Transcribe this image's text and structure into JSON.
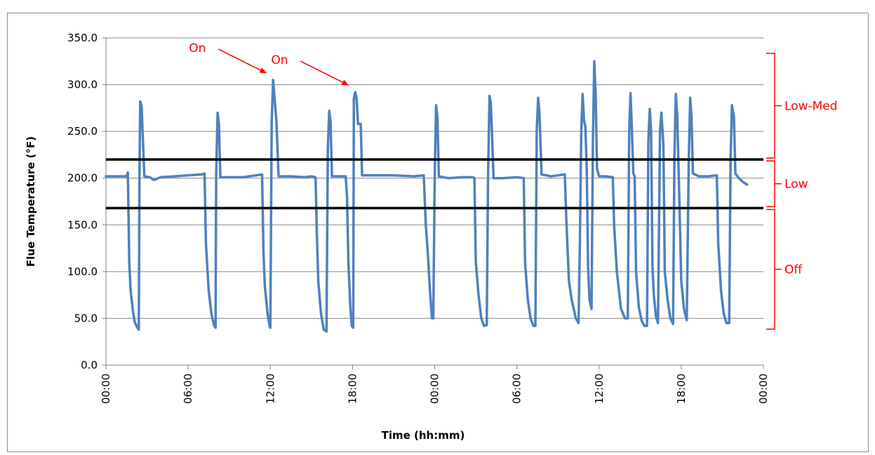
{
  "chart_data": {
    "type": "line",
    "title": "",
    "xlabel": "Time (hh:mm)",
    "ylabel": "Flue Temperature (°F)",
    "ylim": [
      0,
      350
    ],
    "y_ticks": [
      "0.0",
      "50.0",
      "100.0",
      "150.0",
      "200.0",
      "250.0",
      "300.0",
      "350.0"
    ],
    "x_unit": "hours",
    "xlim": [
      0,
      48
    ],
    "x_ticks": [
      {
        "x": 0,
        "label": "00:00"
      },
      {
        "x": 6,
        "label": "06:00"
      },
      {
        "x": 12,
        "label": "12:00"
      },
      {
        "x": 18,
        "label": "18:00"
      },
      {
        "x": 24,
        "label": "00:00"
      },
      {
        "x": 30,
        "label": "06:00"
      },
      {
        "x": 36,
        "label": "12:00"
      },
      {
        "x": 42,
        "label": "18:00"
      },
      {
        "x": 48,
        "label": "00:00"
      }
    ],
    "grid": true,
    "line_color": "#4f81bd",
    "threshold_color": "#000000",
    "thresholds": [
      220,
      168
    ],
    "annotations": [
      {
        "label": "On",
        "target": [
          12.0,
          305
        ]
      },
      {
        "label": "On",
        "target": [
          18.0,
          292
        ]
      }
    ],
    "bands": [
      {
        "label": "Low-Med",
        "from": 220,
        "to": 335
      },
      {
        "label": "Low",
        "from": 168,
        "to": 220
      },
      {
        "label": "Off",
        "from": 37,
        "to": 168
      }
    ],
    "band_color": "#ff0000",
    "series": [
      {
        "values": [
          [
            0.0,
            202
          ],
          [
            1.5,
            202
          ],
          [
            1.6,
            206
          ],
          [
            1.7,
            110
          ],
          [
            1.8,
            80
          ],
          [
            1.95,
            60
          ],
          [
            2.1,
            46
          ],
          [
            2.3,
            40
          ],
          [
            2.4,
            38
          ],
          [
            2.45,
            205
          ],
          [
            2.5,
            282
          ],
          [
            2.6,
            277
          ],
          [
            2.7,
            240
          ],
          [
            2.8,
            202
          ],
          [
            3.2,
            201
          ],
          [
            3.5,
            198
          ],
          [
            4.0,
            201
          ],
          [
            5.0,
            202
          ],
          [
            6.0,
            203
          ],
          [
            7.0,
            204
          ],
          [
            7.2,
            205
          ],
          [
            7.3,
            130
          ],
          [
            7.5,
            80
          ],
          [
            7.7,
            55
          ],
          [
            7.9,
            42
          ],
          [
            8.0,
            40
          ],
          [
            8.05,
            205
          ],
          [
            8.15,
            270
          ],
          [
            8.25,
            258
          ],
          [
            8.35,
            201
          ],
          [
            9.0,
            201
          ],
          [
            10.0,
            201
          ],
          [
            11.0,
            203
          ],
          [
            11.4,
            204
          ],
          [
            11.5,
            120
          ],
          [
            11.6,
            85
          ],
          [
            11.8,
            55
          ],
          [
            11.95,
            42
          ],
          [
            12.0,
            40
          ],
          [
            12.1,
            260
          ],
          [
            12.2,
            305
          ],
          [
            12.35,
            278
          ],
          [
            12.45,
            260
          ],
          [
            12.6,
            202
          ],
          [
            13.5,
            202
          ],
          [
            14.5,
            201
          ],
          [
            15.0,
            202
          ],
          [
            15.3,
            201
          ],
          [
            15.4,
            140
          ],
          [
            15.5,
            90
          ],
          [
            15.7,
            55
          ],
          [
            15.9,
            38
          ],
          [
            16.1,
            36
          ],
          [
            16.2,
            230
          ],
          [
            16.3,
            272
          ],
          [
            16.4,
            260
          ],
          [
            16.5,
            202
          ],
          [
            17.0,
            202
          ],
          [
            17.5,
            202
          ],
          [
            17.6,
            180
          ],
          [
            17.7,
            110
          ],
          [
            17.85,
            60
          ],
          [
            17.95,
            42
          ],
          [
            18.05,
            40
          ],
          [
            18.1,
            285
          ],
          [
            18.2,
            292
          ],
          [
            18.3,
            285
          ],
          [
            18.4,
            258
          ],
          [
            18.6,
            258
          ],
          [
            18.7,
            203
          ],
          [
            19.5,
            203
          ],
          [
            21.0,
            203
          ],
          [
            22.5,
            202
          ],
          [
            23.2,
            203
          ],
          [
            23.35,
            150
          ],
          [
            23.5,
            120
          ],
          [
            23.65,
            80
          ],
          [
            23.8,
            50
          ],
          [
            23.9,
            50
          ],
          [
            24.0,
            200
          ],
          [
            24.1,
            278
          ],
          [
            24.2,
            265
          ],
          [
            24.3,
            202
          ],
          [
            25.0,
            200
          ],
          [
            26.0,
            201
          ],
          [
            26.8,
            201
          ],
          [
            26.9,
            200
          ],
          [
            27.0,
            110
          ],
          [
            27.2,
            75
          ],
          [
            27.4,
            50
          ],
          [
            27.6,
            42
          ],
          [
            27.8,
            43
          ],
          [
            27.9,
            205
          ],
          [
            28.0,
            288
          ],
          [
            28.1,
            280
          ],
          [
            28.2,
            240
          ],
          [
            28.3,
            200
          ],
          [
            29.0,
            200
          ],
          [
            30.0,
            201
          ],
          [
            30.5,
            200
          ],
          [
            30.6,
            110
          ],
          [
            30.8,
            70
          ],
          [
            31.0,
            50
          ],
          [
            31.2,
            42
          ],
          [
            31.35,
            42
          ],
          [
            31.45,
            250
          ],
          [
            31.55,
            286
          ],
          [
            31.65,
            270
          ],
          [
            31.8,
            204
          ],
          [
            32.5,
            202
          ],
          [
            33.5,
            204
          ],
          [
            33.6,
            160
          ],
          [
            33.8,
            90
          ],
          [
            34.0,
            70
          ],
          [
            34.3,
            50
          ],
          [
            34.5,
            45
          ],
          [
            34.6,
            130
          ],
          [
            34.7,
            250
          ],
          [
            34.8,
            290
          ],
          [
            34.9,
            262
          ],
          [
            35.0,
            255
          ],
          [
            35.1,
            210
          ],
          [
            35.2,
            105
          ],
          [
            35.3,
            70
          ],
          [
            35.45,
            60
          ],
          [
            35.55,
            240
          ],
          [
            35.65,
            325
          ],
          [
            35.75,
            290
          ],
          [
            35.85,
            210
          ],
          [
            36.0,
            202
          ],
          [
            36.5,
            202
          ],
          [
            37.0,
            201
          ],
          [
            37.1,
            150
          ],
          [
            37.3,
            100
          ],
          [
            37.6,
            60
          ],
          [
            37.9,
            50
          ],
          [
            38.1,
            50
          ],
          [
            38.2,
            250
          ],
          [
            38.3,
            291
          ],
          [
            38.4,
            250
          ],
          [
            38.5,
            205
          ],
          [
            38.6,
            202
          ],
          [
            38.7,
            100
          ],
          [
            38.9,
            62
          ],
          [
            39.1,
            48
          ],
          [
            39.3,
            42
          ],
          [
            39.5,
            42
          ],
          [
            39.6,
            240
          ],
          [
            39.7,
            274
          ],
          [
            39.8,
            250
          ],
          [
            39.9,
            105
          ],
          [
            40.0,
            75
          ],
          [
            40.15,
            52
          ],
          [
            40.3,
            45
          ],
          [
            40.45,
            250
          ],
          [
            40.55,
            270
          ],
          [
            40.7,
            235
          ],
          [
            40.8,
            100
          ],
          [
            41.0,
            70
          ],
          [
            41.2,
            50
          ],
          [
            41.4,
            44
          ],
          [
            41.5,
            220
          ],
          [
            41.6,
            290
          ],
          [
            41.7,
            270
          ],
          [
            41.85,
            185
          ],
          [
            42.0,
            90
          ],
          [
            42.2,
            60
          ],
          [
            42.4,
            48
          ],
          [
            42.55,
            220
          ],
          [
            42.65,
            286
          ],
          [
            42.75,
            265
          ],
          [
            42.85,
            205
          ],
          [
            43.3,
            202
          ],
          [
            44.0,
            202
          ],
          [
            44.6,
            203
          ],
          [
            44.7,
            130
          ],
          [
            44.9,
            80
          ],
          [
            45.1,
            55
          ],
          [
            45.3,
            45
          ],
          [
            45.5,
            45
          ],
          [
            45.6,
            220
          ],
          [
            45.7,
            278
          ],
          [
            45.85,
            265
          ],
          [
            45.95,
            205
          ],
          [
            46.2,
            200
          ],
          [
            46.5,
            196
          ],
          [
            46.8,
            193
          ]
        ]
      }
    ]
  }
}
